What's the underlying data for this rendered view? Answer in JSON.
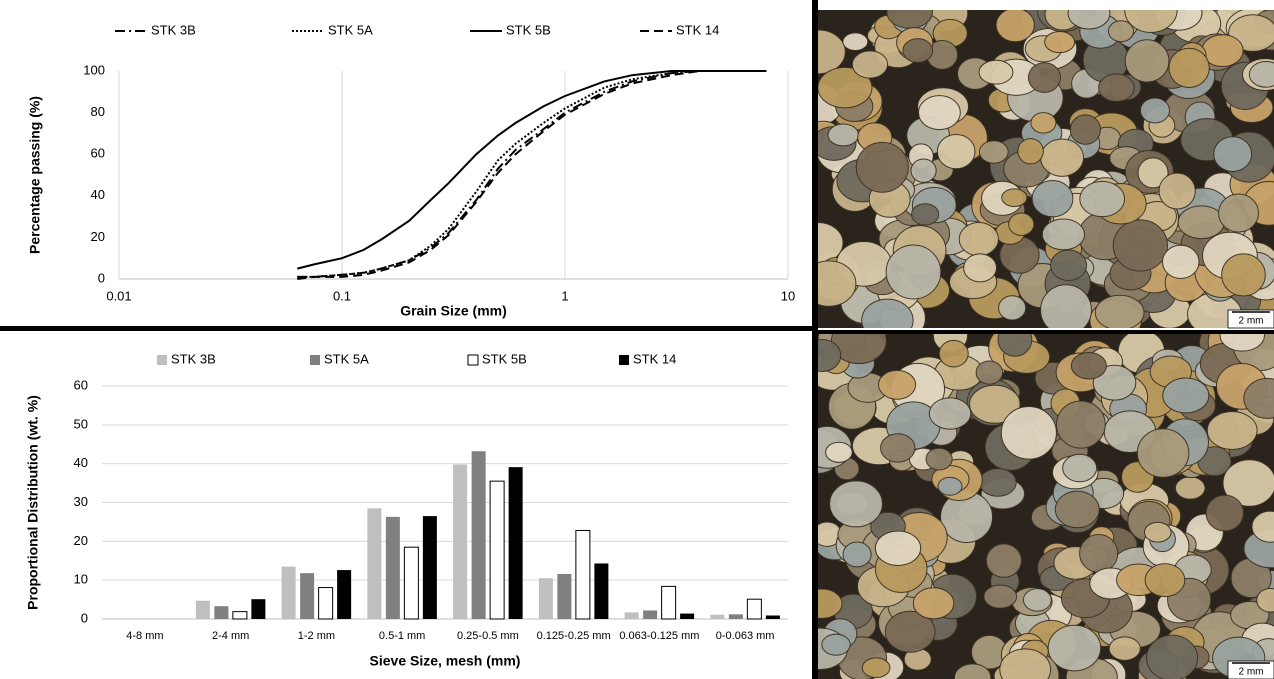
{
  "chart_data": [
    {
      "type": "line",
      "xscale": "log",
      "grid": "x",
      "xlabel": "Grain Size (mm)",
      "ylabel": "Percentage passing  (%)",
      "xlim": [
        0.01,
        10
      ],
      "xticks": [
        0.01,
        0.1,
        1,
        10
      ],
      "ylim": [
        0,
        100
      ],
      "yticks": [
        0,
        20,
        40,
        60,
        80,
        100
      ],
      "x": [
        0.063,
        0.075,
        0.1,
        0.125,
        0.15,
        0.2,
        0.25,
        0.3,
        0.4,
        0.5,
        0.6,
        0.8,
        1,
        1.5,
        2,
        3,
        4,
        8
      ],
      "series": [
        {
          "name": "STK 3B",
          "color": "#000000",
          "style": "dashdot",
          "values": [
            1,
            1,
            2,
            3,
            5,
            9,
            15,
            22,
            38,
            53,
            62,
            72,
            80,
            90,
            95,
            99,
            100,
            100
          ]
        },
        {
          "name": "STK 5A",
          "color": "#000000",
          "style": "dotted",
          "values": [
            1,
            1,
            2,
            3,
            5,
            9,
            16,
            24,
            42,
            57,
            65,
            75,
            82,
            92,
            96,
            99,
            100,
            100
          ]
        },
        {
          "name": "STK 5B",
          "color": "#000000",
          "style": "solid",
          "values": [
            5,
            7,
            10,
            14,
            19,
            28,
            38,
            46,
            60,
            69,
            75,
            83,
            88,
            95,
            98,
            100,
            100,
            100
          ]
        },
        {
          "name": "STK 14",
          "color": "#000000",
          "style": "dashed",
          "values": [
            0,
            1,
            1,
            2,
            4,
            8,
            14,
            21,
            37,
            51,
            60,
            71,
            79,
            89,
            94,
            98,
            100,
            100
          ]
        }
      ]
    },
    {
      "type": "bar",
      "grid": "y",
      "xlabel": "Sieve Size, mesh (mm)",
      "ylabel": "Proportional Distribution (wt. %)",
      "ylim": [
        0,
        60
      ],
      "yticks": [
        0,
        10,
        20,
        30,
        40,
        50,
        60
      ],
      "categories": [
        "4-8 mm",
        "2-4 mm",
        "1-2 mm",
        "0.5-1 mm",
        "0.25-0.5 mm",
        "0.125-0.25 mm",
        "0.063-0.125 mm",
        "0-0.063 mm"
      ],
      "series": [
        {
          "name": "STK 3B",
          "color": "#bfbfbf",
          "values": [
            0,
            4.7,
            13.5,
            28.5,
            39.8,
            10.5,
            1.7,
            1.1
          ]
        },
        {
          "name": "STK 5A",
          "color": "#808080",
          "values": [
            0,
            3.3,
            11.8,
            26.3,
            43.2,
            11.6,
            2.2,
            1.2
          ]
        },
        {
          "name": "STK 5B",
          "color": "#ffffff",
          "values": [
            0,
            1.9,
            8.1,
            18.5,
            35.5,
            22.8,
            8.4,
            5.1
          ]
        },
        {
          "name": "STK 14",
          "color": "#000000",
          "values": [
            0,
            5.1,
            12.6,
            26.5,
            39.1,
            14.3,
            1.4,
            0.9
          ]
        }
      ]
    }
  ],
  "photos": [
    {
      "scale_label": "2 mm"
    },
    {
      "scale_label": "2 mm"
    }
  ]
}
